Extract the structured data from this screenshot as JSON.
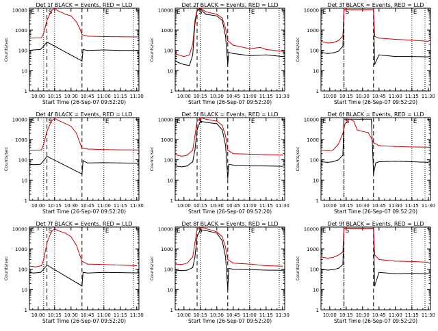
{
  "colors": {
    "events": "#000000",
    "lld": "#d40000",
    "axis": "#000000",
    "background": "#ffffff"
  },
  "common": {
    "xlabel": "Start Time (26-Sep-07 09:52:20)",
    "ylabel": "Counts/sec",
    "x_ticks": [
      "10:00",
      "10:15",
      "10:30",
      "10:45",
      "11:00",
      "11:15",
      "11:30"
    ],
    "y_ticks": [
      "1",
      "10",
      "100",
      "1000",
      "10000"
    ],
    "markers": [
      "E",
      "S",
      "E"
    ]
  },
  "chart_data": [
    {
      "type": "line",
      "title": "Det 1f BLACK = Events, RED = LLD",
      "xlabel": "Start Time (26-Sep-07 09:52:20)",
      "ylabel": "Counts/sec",
      "y_scale": "log",
      "xlim": [
        "09:52",
        "11:32"
      ],
      "ylim": [
        1,
        12000
      ],
      "dotted_lines": [
        "10:05",
        "10:15",
        "11:00",
        "11:27"
      ],
      "dashed_lines": [
        "10:08",
        "10:40"
      ],
      "series": [
        {
          "name": "Events",
          "color": "#000000",
          "x": [
            "09:52",
            "09:56",
            "10:02",
            "10:05",
            "10:08",
            "10:40",
            "10:41",
            "10:45",
            "11:00",
            "11:15",
            "11:30"
          ],
          "y": [
            100,
            105,
            110,
            160,
            260,
            30,
            110,
            100,
            105,
            100,
            100
          ]
        },
        {
          "name": "LLD",
          "color": "#d40000",
          "x": [
            "09:52",
            "09:58",
            "10:03",
            "10:05",
            "10:08",
            "10:12",
            "10:15",
            "10:18",
            "10:25",
            "10:30",
            "10:35",
            "10:38",
            "10:40",
            "10:45",
            "11:00",
            "11:15",
            "11:30"
          ],
          "y": [
            400,
            410,
            420,
            700,
            3000,
            9000,
            12000,
            9000,
            6000,
            5000,
            2500,
            1200,
            600,
            500,
            480,
            470,
            460
          ]
        }
      ]
    },
    {
      "type": "line",
      "title": "Det 2f BLACK = Events, RED = LLD",
      "xlabel": "Start Time (26-Sep-07 09:52:20)",
      "ylabel": "Counts/sec",
      "y_scale": "log",
      "xlim": [
        "09:52",
        "11:32"
      ],
      "ylim": [
        1,
        12000
      ],
      "dotted_lines": [
        "10:15",
        "11:00",
        "11:27"
      ],
      "dashed_lines": [
        "10:12",
        "10:40"
      ],
      "series": [
        {
          "name": "Events",
          "color": "#000000",
          "x": [
            "09:52",
            "09:55",
            "10:00",
            "10:05",
            "10:08",
            "10:10",
            "10:12",
            "10:15",
            "10:20",
            "10:30",
            "10:35",
            "10:38",
            "10:40",
            "10:41",
            "10:45",
            "11:00",
            "11:15",
            "11:30"
          ],
          "y": [
            30,
            25,
            20,
            18,
            60,
            2000,
            9000,
            11000,
            6000,
            5000,
            3000,
            500,
            20,
            80,
            70,
            55,
            60,
            50
          ]
        },
        {
          "name": "LLD",
          "color": "#d40000",
          "x": [
            "09:52",
            "09:55",
            "10:00",
            "10:05",
            "10:08",
            "10:10",
            "10:12",
            "10:15",
            "10:20",
            "10:30",
            "10:35",
            "10:38",
            "10:40",
            "10:45",
            "11:00",
            "11:10",
            "11:15",
            "11:30"
          ],
          "y": [
            70,
            60,
            50,
            60,
            200,
            3000,
            10000,
            12000,
            8000,
            6000,
            4000,
            1200,
            300,
            180,
            120,
            140,
            110,
            90
          ]
        }
      ]
    },
    {
      "type": "line",
      "title": "Det 3f BLACK = Events, RED = LLD",
      "xlabel": "Start Time (26-Sep-07 09:52:20)",
      "ylabel": "Counts/sec",
      "y_scale": "log",
      "xlim": [
        "09:52",
        "11:32"
      ],
      "ylim": [
        1,
        12000
      ],
      "dotted_lines": [
        "10:13",
        "11:15",
        "11:27"
      ],
      "dashed_lines": [
        "10:13",
        "10:40"
      ],
      "series": [
        {
          "name": "Events",
          "color": "#000000",
          "x": [
            "09:52",
            "09:58",
            "10:03",
            "10:08",
            "10:12",
            "10:13",
            "10:40",
            "10:41",
            "10:45",
            "11:00",
            "11:15",
            "11:30"
          ],
          "y": [
            80,
            70,
            75,
            90,
            160,
            10000,
            10000,
            20,
            60,
            50,
            50,
            48
          ]
        },
        {
          "name": "LLD",
          "color": "#d40000",
          "x": [
            "09:52",
            "09:58",
            "10:03",
            "10:08",
            "10:12",
            "10:13",
            "10:40",
            "10:41",
            "10:45",
            "11:00",
            "11:15",
            "11:30"
          ],
          "y": [
            280,
            230,
            240,
            300,
            500,
            10000,
            10000,
            500,
            400,
            350,
            320,
            280
          ]
        }
      ]
    },
    {
      "type": "line",
      "title": "Det 4f BLACK = Events, RED = LLD",
      "xlabel": "Start Time (26-Sep-07 09:52:20)",
      "ylabel": "Counts/sec",
      "y_scale": "log",
      "xlim": [
        "09:52",
        "11:32"
      ],
      "ylim": [
        1,
        12000
      ],
      "dotted_lines": [
        "10:05",
        "10:15",
        "11:00",
        "11:27"
      ],
      "dashed_lines": [
        "10:08",
        "10:40"
      ],
      "series": [
        {
          "name": "Events",
          "color": "#000000",
          "x": [
            "09:52",
            "09:56",
            "10:02",
            "10:05",
            "10:08",
            "10:40",
            "10:41",
            "10:45",
            "11:00",
            "11:15",
            "11:30"
          ],
          "y": [
            60,
            58,
            60,
            90,
            150,
            20,
            90,
            70,
            72,
            70,
            68
          ]
        },
        {
          "name": "LLD",
          "color": "#d40000",
          "x": [
            "09:52",
            "09:58",
            "10:03",
            "10:05",
            "10:08",
            "10:12",
            "10:15",
            "10:18",
            "10:25",
            "10:30",
            "10:35",
            "10:38",
            "10:40",
            "10:45",
            "11:00",
            "11:15",
            "11:30"
          ],
          "y": [
            300,
            300,
            310,
            600,
            2500,
            8000,
            11000,
            9000,
            6000,
            4500,
            2000,
            700,
            380,
            340,
            320,
            310,
            305
          ]
        }
      ]
    },
    {
      "type": "line",
      "title": "Det 5f BLACK = Events, RED = LLD",
      "xlabel": "Start Time (26-Sep-07 09:52:20)",
      "ylabel": "Counts/sec",
      "y_scale": "log",
      "xlim": [
        "09:52",
        "11:32"
      ],
      "ylim": [
        1,
        12000
      ],
      "dotted_lines": [
        "10:15",
        "11:00",
        "11:27"
      ],
      "dashed_lines": [
        "10:12",
        "10:40"
      ],
      "series": [
        {
          "name": "Events",
          "color": "#000000",
          "x": [
            "09:52",
            "09:58",
            "10:03",
            "10:08",
            "10:10",
            "10:12",
            "10:15",
            "10:20",
            "10:30",
            "10:35",
            "10:38",
            "10:40",
            "10:41",
            "10:45",
            "11:00",
            "11:15",
            "11:30"
          ],
          "y": [
            50,
            45,
            50,
            80,
            300,
            3000,
            8000,
            7000,
            6000,
            3000,
            500,
            12,
            60,
            55,
            50,
            50,
            48
          ]
        },
        {
          "name": "LLD",
          "color": "#d40000",
          "x": [
            "09:52",
            "09:58",
            "10:03",
            "10:08",
            "10:10",
            "10:12",
            "10:15",
            "10:20",
            "10:30",
            "10:35",
            "10:38",
            "10:40",
            "10:45",
            "11:00",
            "11:15",
            "11:30"
          ],
          "y": [
            180,
            150,
            170,
            300,
            1500,
            8000,
            12000,
            10000,
            8000,
            5000,
            1500,
            300,
            200,
            190,
            180,
            170
          ]
        }
      ]
    },
    {
      "type": "line",
      "title": "Det 6f BLACK = Events, RED = LLD",
      "xlabel": "Start Time (26-Sep-07 09:52:20)",
      "ylabel": "Counts/sec",
      "y_scale": "log",
      "xlim": [
        "09:52",
        "11:32"
      ],
      "ylim": [
        1,
        12000
      ],
      "dotted_lines": [
        "10:13",
        "11:15",
        "11:27"
      ],
      "dashed_lines": [
        "10:13",
        "10:40"
      ],
      "series": [
        {
          "name": "Events",
          "color": "#000000",
          "x": [
            "09:52",
            "09:58",
            "10:03",
            "10:08",
            "10:12",
            "10:13",
            "10:38",
            "10:39",
            "10:40",
            "10:42",
            "10:45",
            "11:00",
            "11:15",
            "11:30"
          ],
          "y": [
            80,
            75,
            80,
            100,
            170,
            10000,
            10000,
            500,
            20,
            70,
            80,
            85,
            80,
            75
          ]
        },
        {
          "name": "LLD",
          "color": "#d40000",
          "x": [
            "09:52",
            "09:58",
            "10:03",
            "10:08",
            "10:12",
            "10:14",
            "10:18",
            "10:22",
            "10:25",
            "10:30",
            "10:35",
            "10:38",
            "10:40",
            "10:45",
            "11:00",
            "11:15",
            "11:30"
          ],
          "y": [
            300,
            280,
            300,
            600,
            2000,
            6000,
            10000,
            8000,
            3000,
            2500,
            2200,
            1200,
            700,
            500,
            450,
            430,
            420
          ]
        }
      ]
    },
    {
      "type": "line",
      "title": "Det 7f BLACK = Events, RED = LLD",
      "xlabel": "Start Time (26-Sep-07 09:52:20)",
      "ylabel": "Counts/sec",
      "y_scale": "log",
      "xlim": [
        "09:52",
        "11:32"
      ],
      "ylim": [
        1,
        12000
      ],
      "dotted_lines": [
        "10:05",
        "10:15",
        "11:00",
        "11:27"
      ],
      "dashed_lines": [
        "10:08",
        "10:40"
      ],
      "series": [
        {
          "name": "Events",
          "color": "#000000",
          "x": [
            "09:52",
            "09:56",
            "10:02",
            "10:05",
            "10:08",
            "10:40",
            "10:41",
            "10:45",
            "11:00",
            "11:15",
            "11:30"
          ],
          "y": [
            70,
            65,
            70,
            100,
            160,
            15,
            70,
            65,
            70,
            68,
            66
          ]
        },
        {
          "name": "LLD",
          "color": "#d40000",
          "x": [
            "09:52",
            "09:58",
            "10:03",
            "10:05",
            "10:08",
            "10:12",
            "10:15",
            "10:18",
            "10:25",
            "10:30",
            "10:35",
            "10:38",
            "10:40",
            "10:45",
            "11:00",
            "11:15",
            "11:30"
          ],
          "y": [
            140,
            130,
            150,
            300,
            2000,
            7000,
            10000,
            8000,
            6000,
            4000,
            1500,
            500,
            250,
            180,
            170,
            160,
            150
          ]
        }
      ]
    },
    {
      "type": "line",
      "title": "Det 8f BLACK = Events, RED = LLD",
      "xlabel": "Start Time (26-Sep-07 09:52:20)",
      "ylabel": "Counts/sec",
      "y_scale": "log",
      "xlim": [
        "09:52",
        "11:32"
      ],
      "ylim": [
        1,
        12000
      ],
      "dotted_lines": [
        "10:15",
        "11:00",
        "11:27"
      ],
      "dashed_lines": [
        "10:12",
        "10:40"
      ],
      "series": [
        {
          "name": "Events",
          "color": "#000000",
          "x": [
            "09:52",
            "09:58",
            "10:03",
            "10:08",
            "10:10",
            "10:12",
            "10:15",
            "10:20",
            "10:30",
            "10:35",
            "10:38",
            "10:40",
            "10:41",
            "10:45",
            "11:00",
            "11:15",
            "11:30"
          ],
          "y": [
            90,
            85,
            90,
            120,
            400,
            4000,
            9000,
            8000,
            6000,
            2500,
            400,
            10,
            110,
            100,
            95,
            90,
            88
          ]
        },
        {
          "name": "LLD",
          "color": "#d40000",
          "x": [
            "09:52",
            "09:58",
            "10:03",
            "10:08",
            "10:10",
            "10:12",
            "10:15",
            "10:20",
            "10:30",
            "10:35",
            "10:38",
            "10:40",
            "10:45",
            "11:00",
            "11:15",
            "11:30"
          ],
          "y": [
            180,
            170,
            200,
            400,
            2000,
            9000,
            12000,
            10000,
            7000,
            4000,
            1200,
            300,
            200,
            180,
            150,
            140
          ]
        }
      ]
    },
    {
      "type": "line",
      "title": "Det 9f BLACK = Events, RED = LLD",
      "xlabel": "Start Time (26-Sep-07 09:52:20)",
      "ylabel": "Counts/sec",
      "y_scale": "log",
      "xlim": [
        "09:52",
        "11:32"
      ],
      "ylim": [
        1,
        12000
      ],
      "dotted_lines": [
        "10:13",
        "11:15",
        "11:27"
      ],
      "dashed_lines": [
        "10:13",
        "10:40"
      ],
      "series": [
        {
          "name": "Events",
          "color": "#000000",
          "x": [
            "09:52",
            "09:58",
            "10:03",
            "10:08",
            "10:12",
            "10:13",
            "10:40",
            "10:41",
            "10:45",
            "11:00",
            "11:15",
            "11:30"
          ],
          "y": [
            100,
            90,
            95,
            110,
            170,
            10000,
            10000,
            15,
            70,
            60,
            62,
            60
          ]
        },
        {
          "name": "LLD",
          "color": "#d40000",
          "x": [
            "09:52",
            "09:58",
            "10:03",
            "10:08",
            "10:12",
            "10:13",
            "10:40",
            "10:41",
            "10:45",
            "11:00",
            "11:15",
            "11:30"
          ],
          "y": [
            400,
            350,
            380,
            500,
            700,
            10000,
            10000,
            500,
            300,
            250,
            240,
            220
          ]
        }
      ]
    }
  ]
}
